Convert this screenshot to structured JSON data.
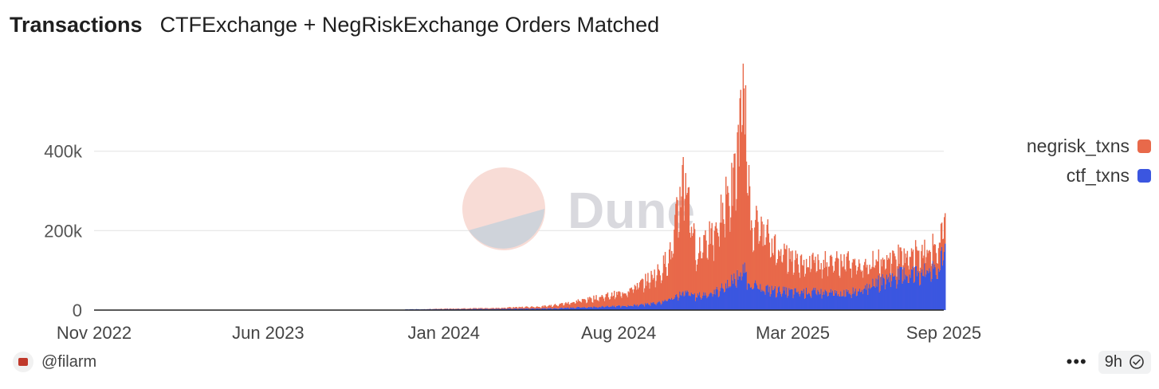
{
  "header": {
    "title": "Transactions",
    "subtitle": "CTFExchange + NegRiskExchange Orders Matched"
  },
  "watermark": {
    "text": "Dune"
  },
  "footer": {
    "author": "@filarm",
    "more_label": "•••",
    "age_label": "9h",
    "icons": {
      "avatar": "user-avatar-icon",
      "more": "more-options-icon",
      "verified": "check-badge-icon"
    }
  },
  "chart_data": {
    "type": "bar",
    "stacked": true,
    "x_ticks": [
      "Nov 2022",
      "Jun 2023",
      "Jan 2024",
      "Aug 2024",
      "Mar 2025",
      "Sep 2025"
    ],
    "y_ticks": [
      "0",
      "200k",
      "400k"
    ],
    "ylim": [
      0,
      600000
    ],
    "grid": true,
    "legend_position": "right",
    "series": [
      {
        "name": "negrisk_txns",
        "color": "#e8694a",
        "points": [
          [
            "2022-11-01",
            0
          ],
          [
            "2023-06-01",
            0
          ],
          [
            "2023-12-01",
            0
          ],
          [
            "2024-01-01",
            1000
          ],
          [
            "2024-03-01",
            2000
          ],
          [
            "2024-05-01",
            5000
          ],
          [
            "2024-06-01",
            12000
          ],
          [
            "2024-07-01",
            22000
          ],
          [
            "2024-08-01",
            30000
          ],
          [
            "2024-09-01",
            55000
          ],
          [
            "2024-09-20",
            80000
          ],
          [
            "2024-10-05",
            120000
          ],
          [
            "2024-10-12",
            220000
          ],
          [
            "2024-10-20",
            310000
          ],
          [
            "2024-10-28",
            180000
          ],
          [
            "2024-11-03",
            100000
          ],
          [
            "2024-11-15",
            150000
          ],
          [
            "2024-11-25",
            130000
          ],
          [
            "2024-12-05",
            200000
          ],
          [
            "2024-12-18",
            230000
          ],
          [
            "2024-12-24",
            330000
          ],
          [
            "2024-12-31",
            440000
          ],
          [
            "2025-01-08",
            160000
          ],
          [
            "2025-01-20",
            150000
          ],
          [
            "2025-02-05",
            110000
          ],
          [
            "2025-03-01",
            80000
          ],
          [
            "2025-04-01",
            75000
          ],
          [
            "2025-05-01",
            80000
          ],
          [
            "2025-06-01",
            55000
          ],
          [
            "2025-07-01",
            50000
          ],
          [
            "2025-08-01",
            50000
          ],
          [
            "2025-08-25",
            55000
          ],
          [
            "2025-09-03",
            90000
          ],
          [
            "2025-09-10",
            75000
          ]
        ]
      },
      {
        "name": "ctf_txns",
        "color": "#3b56e0",
        "points": [
          [
            "2022-11-01",
            1000
          ],
          [
            "2023-06-01",
            1500
          ],
          [
            "2023-12-01",
            2000
          ],
          [
            "2024-01-01",
            2500
          ],
          [
            "2024-03-01",
            3000
          ],
          [
            "2024-05-01",
            4000
          ],
          [
            "2024-06-01",
            6000
          ],
          [
            "2024-07-01",
            8000
          ],
          [
            "2024-08-01",
            10000
          ],
          [
            "2024-09-01",
            14000
          ],
          [
            "2024-09-20",
            20000
          ],
          [
            "2024-10-05",
            30000
          ],
          [
            "2024-10-12",
            38000
          ],
          [
            "2024-10-20",
            42000
          ],
          [
            "2024-10-28",
            40000
          ],
          [
            "2024-11-03",
            35000
          ],
          [
            "2024-11-15",
            40000
          ],
          [
            "2024-11-25",
            45000
          ],
          [
            "2024-12-05",
            55000
          ],
          [
            "2024-12-18",
            75000
          ],
          [
            "2024-12-24",
            85000
          ],
          [
            "2024-12-31",
            100000
          ],
          [
            "2025-01-08",
            65000
          ],
          [
            "2025-01-20",
            55000
          ],
          [
            "2025-02-05",
            50000
          ],
          [
            "2025-03-01",
            45000
          ],
          [
            "2025-04-01",
            45000
          ],
          [
            "2025-05-01",
            40000
          ],
          [
            "2025-06-01",
            60000
          ],
          [
            "2025-07-01",
            85000
          ],
          [
            "2025-08-01",
            95000
          ],
          [
            "2025-08-25",
            100000
          ],
          [
            "2025-09-03",
            160000
          ],
          [
            "2025-09-10",
            165000
          ]
        ]
      }
    ]
  }
}
